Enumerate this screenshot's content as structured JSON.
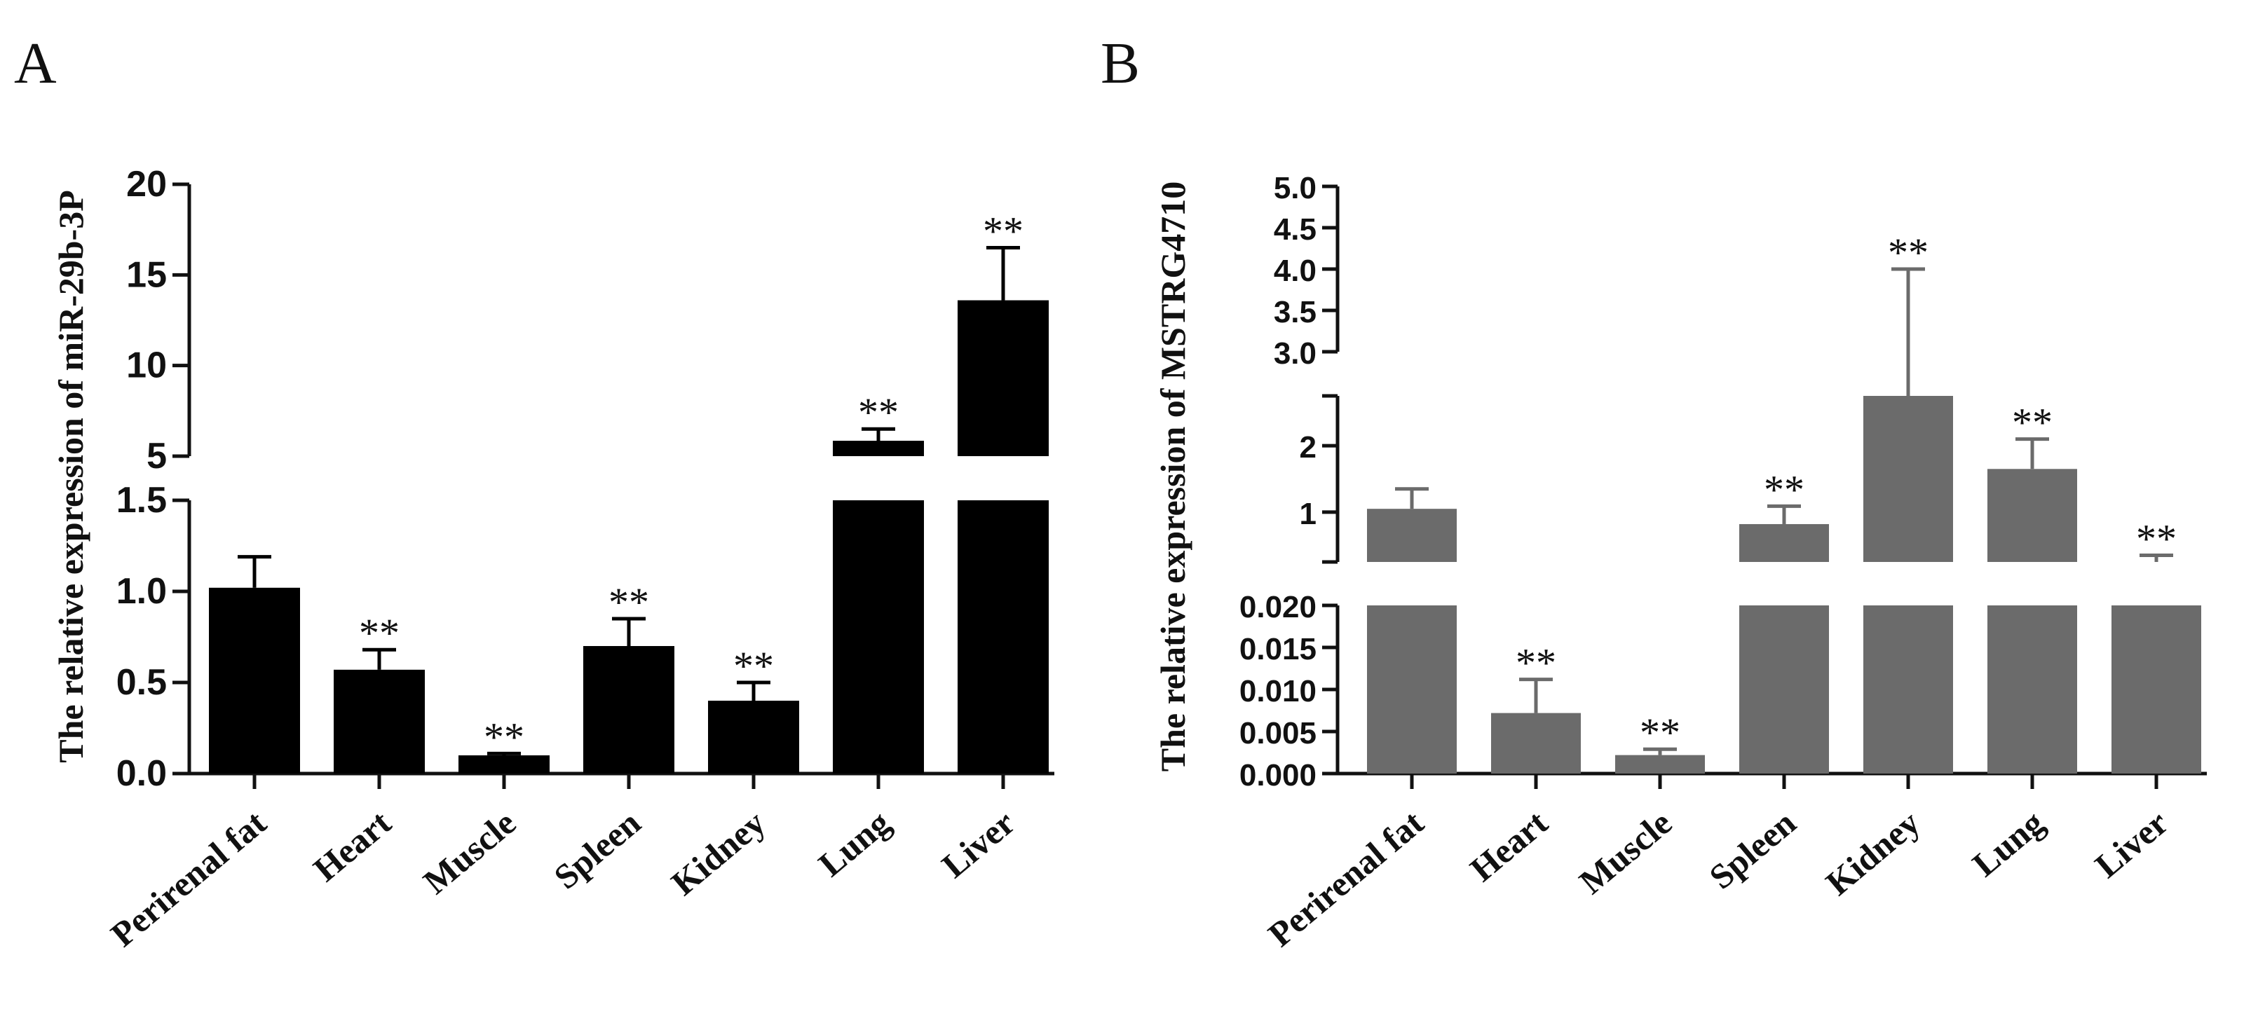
{
  "chart_data": [
    {
      "panel": "A",
      "type": "bar",
      "color": "#000000",
      "ylabel": "The relative expression of miR-29b-3P",
      "categories": [
        "Perirenal fat",
        "Heart",
        "Muscle",
        "Spleen",
        "Kidney",
        "Lung",
        "Liver"
      ],
      "values": [
        1.02,
        0.57,
        0.1,
        0.7,
        0.4,
        5.85,
        13.6
      ],
      "errors": [
        0.17,
        0.11,
        0.01,
        0.15,
        0.1,
        0.65,
        2.9
      ],
      "significance": [
        "",
        "**",
        "**",
        "**",
        "**",
        "**",
        "**"
      ],
      "broken_axis": [
        {
          "range": [
            0,
            1.5
          ],
          "ticks": [
            "0.0",
            "0.5",
            "1.0",
            "1.5"
          ]
        },
        {
          "range": [
            5,
            20
          ],
          "ticks": [
            "5",
            "10",
            "15",
            "20"
          ]
        }
      ]
    },
    {
      "panel": "B",
      "type": "bar",
      "color": "#6b6b6b",
      "ylabel": "The relative expression of MSTRG4710",
      "categories": [
        "Perirenal fat",
        "Heart",
        "Muscle",
        "Spleen",
        "Kidney",
        "Lung",
        "Liver"
      ],
      "values": [
        1.05,
        0.0072,
        0.0022,
        0.82,
        2.95,
        1.65,
        0.25
      ],
      "errors": [
        0.3,
        0.004,
        0.0007,
        0.27,
        1.05,
        0.45,
        0.1
      ],
      "significance": [
        "",
        "**",
        "**",
        "**",
        "**",
        "**",
        "**"
      ],
      "broken_axis": [
        {
          "range": [
            0,
            0.02
          ],
          "ticks": [
            "0.000",
            "0.005",
            "0.010",
            "0.015",
            "0.020"
          ]
        },
        {
          "range": [
            0.25,
            2.75
          ],
          "ticks": [
            "1",
            "2"
          ]
        },
        {
          "range": [
            3.0,
            5.0
          ],
          "ticks": [
            "3.0",
            "3.5",
            "4.0",
            "4.5",
            "5.0"
          ]
        }
      ]
    }
  ]
}
